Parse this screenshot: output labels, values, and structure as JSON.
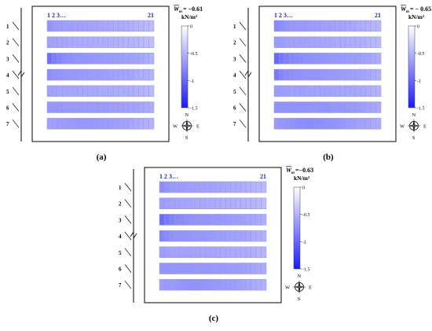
{
  "panels": [
    {
      "letter": "(a)",
      "mean_label": "= −0.61",
      "unit_label": "kN/m²",
      "col_label_first": "1 2 3…",
      "col_label_last": "21",
      "row_labels": [
        "1",
        "2",
        "3",
        "4",
        "5",
        "6",
        "7"
      ],
      "rows": [
        [
          -0.7,
          -0.66,
          -0.64,
          -0.62,
          -0.62,
          -0.61,
          -0.62,
          -0.6,
          -0.6,
          -0.59,
          -0.58,
          -0.57,
          -0.56,
          -0.55,
          -0.55,
          -0.54,
          -0.52,
          -0.5,
          -0.48,
          -0.46,
          -0.44
        ],
        [
          -0.62,
          -0.6,
          -0.58,
          -0.58,
          -0.57,
          -0.56,
          -0.56,
          -0.55,
          -0.55,
          -0.54,
          -0.54,
          -0.53,
          -0.52,
          -0.52,
          -0.51,
          -0.5,
          -0.49,
          -0.48,
          -0.46,
          -0.44,
          -0.42
        ],
        [
          -0.95,
          -0.85,
          -0.8,
          -0.76,
          -0.74,
          -0.72,
          -0.71,
          -0.7,
          -0.7,
          -0.69,
          -0.68,
          -0.67,
          -0.66,
          -0.65,
          -0.64,
          -0.63,
          -0.62,
          -0.6,
          -0.58,
          -0.55,
          -0.52
        ],
        [
          -0.75,
          -0.72,
          -0.7,
          -0.69,
          -0.68,
          -0.68,
          -0.67,
          -0.66,
          -0.66,
          -0.65,
          -0.64,
          -0.63,
          -0.62,
          -0.61,
          -0.6,
          -0.59,
          -0.58,
          -0.56,
          -0.54,
          -0.52,
          -0.5
        ],
        [
          -0.62,
          -0.6,
          -0.59,
          -0.58,
          -0.58,
          -0.58,
          -0.58,
          -0.57,
          -0.57,
          -0.57,
          -0.56,
          -0.56,
          -0.55,
          -0.55,
          -0.54,
          -0.54,
          -0.53,
          -0.52,
          -0.5,
          -0.48,
          -0.46
        ],
        [
          -0.68,
          -0.68,
          -0.68,
          -0.67,
          -0.67,
          -0.67,
          -0.67,
          -0.66,
          -0.66,
          -0.66,
          -0.65,
          -0.65,
          -0.64,
          -0.64,
          -0.63,
          -0.62,
          -0.61,
          -0.6,
          -0.58,
          -0.56,
          -0.54
        ],
        [
          -0.62,
          -0.63,
          -0.64,
          -0.65,
          -0.66,
          -0.67,
          -0.68,
          -0.68,
          -0.68,
          -0.67,
          -0.66,
          -0.65,
          -0.64,
          -0.63,
          -0.62,
          -0.6,
          -0.58,
          -0.56,
          -0.54,
          -0.52,
          -0.5
        ]
      ]
    },
    {
      "letter": "(b)",
      "mean_label": "= − 0.65",
      "unit_label": "kN/m²",
      "col_label_first": "1 2 3…",
      "col_label_last": "21",
      "row_labels": [
        "1",
        "2",
        "3",
        "4",
        "5",
        "6",
        "7"
      ],
      "rows": [
        [
          -0.78,
          -0.74,
          -0.7,
          -0.68,
          -0.67,
          -0.66,
          -0.66,
          -0.65,
          -0.64,
          -0.63,
          -0.62,
          -0.61,
          -0.6,
          -0.59,
          -0.58,
          -0.57,
          -0.55,
          -0.53,
          -0.51,
          -0.49,
          -0.47
        ],
        [
          -0.66,
          -0.64,
          -0.62,
          -0.62,
          -0.61,
          -0.6,
          -0.6,
          -0.59,
          -0.59,
          -0.58,
          -0.58,
          -0.57,
          -0.56,
          -0.56,
          -0.55,
          -0.54,
          -0.53,
          -0.52,
          -0.5,
          -0.48,
          -0.46
        ],
        [
          -0.98,
          -0.9,
          -0.84,
          -0.8,
          -0.78,
          -0.76,
          -0.74,
          -0.73,
          -0.72,
          -0.71,
          -0.7,
          -0.69,
          -0.68,
          -0.67,
          -0.66,
          -0.65,
          -0.64,
          -0.62,
          -0.6,
          -0.57,
          -0.54
        ],
        [
          -0.88,
          -0.8,
          -0.76,
          -0.74,
          -0.73,
          -0.72,
          -0.71,
          -0.7,
          -0.7,
          -0.69,
          -0.68,
          -0.67,
          -0.66,
          -0.65,
          -0.64,
          -0.63,
          -0.62,
          -0.6,
          -0.58,
          -0.55,
          -0.52
        ],
        [
          -0.66,
          -0.64,
          -0.63,
          -0.62,
          -0.62,
          -0.62,
          -0.61,
          -0.61,
          -0.61,
          -0.6,
          -0.6,
          -0.6,
          -0.59,
          -0.59,
          -0.58,
          -0.58,
          -0.57,
          -0.56,
          -0.54,
          -0.52,
          -0.5
        ],
        [
          -0.72,
          -0.72,
          -0.72,
          -0.72,
          -0.72,
          -0.71,
          -0.71,
          -0.71,
          -0.7,
          -0.7,
          -0.7,
          -0.69,
          -0.69,
          -0.68,
          -0.67,
          -0.66,
          -0.65,
          -0.63,
          -0.61,
          -0.59,
          -0.57
        ],
        [
          -0.66,
          -0.68,
          -0.7,
          -0.72,
          -0.74,
          -0.75,
          -0.76,
          -0.76,
          -0.75,
          -0.74,
          -0.73,
          -0.72,
          -0.7,
          -0.68,
          -0.66,
          -0.64,
          -0.62,
          -0.6,
          -0.58,
          -0.56,
          -0.54
        ]
      ]
    },
    {
      "letter": "(c)",
      "mean_label": "=−0.63",
      "unit_label": "kN/m²",
      "col_label_first": "1 2 3…",
      "col_label_last": "21",
      "row_labels": [
        "1",
        "2",
        "3",
        "4",
        "5",
        "6",
        "7"
      ],
      "rows": [
        [
          -0.74,
          -0.7,
          -0.67,
          -0.65,
          -0.64,
          -0.63,
          -0.63,
          -0.62,
          -0.62,
          -0.61,
          -0.6,
          -0.59,
          -0.58,
          -0.57,
          -0.56,
          -0.55,
          -0.53,
          -0.51,
          -0.49,
          -0.47,
          -0.45
        ],
        [
          -0.64,
          -0.62,
          -0.6,
          -0.6,
          -0.59,
          -0.58,
          -0.58,
          -0.57,
          -0.57,
          -0.56,
          -0.56,
          -0.55,
          -0.54,
          -0.54,
          -0.53,
          -0.52,
          -0.51,
          -0.5,
          -0.48,
          -0.46,
          -0.44
        ],
        [
          -0.97,
          -0.88,
          -0.82,
          -0.78,
          -0.76,
          -0.74,
          -0.72,
          -0.71,
          -0.71,
          -0.7,
          -0.69,
          -0.68,
          -0.67,
          -0.66,
          -0.65,
          -0.64,
          -0.63,
          -0.61,
          -0.59,
          -0.56,
          -0.53
        ],
        [
          -0.82,
          -0.76,
          -0.73,
          -0.71,
          -0.7,
          -0.7,
          -0.69,
          -0.68,
          -0.68,
          -0.67,
          -0.66,
          -0.65,
          -0.64,
          -0.63,
          -0.62,
          -0.61,
          -0.6,
          -0.58,
          -0.56,
          -0.53,
          -0.51
        ],
        [
          -0.64,
          -0.62,
          -0.61,
          -0.6,
          -0.6,
          -0.6,
          -0.6,
          -0.59,
          -0.59,
          -0.59,
          -0.58,
          -0.58,
          -0.57,
          -0.57,
          -0.56,
          -0.56,
          -0.55,
          -0.54,
          -0.52,
          -0.5,
          -0.48
        ],
        [
          -0.7,
          -0.7,
          -0.7,
          -0.69,
          -0.69,
          -0.69,
          -0.69,
          -0.68,
          -0.68,
          -0.68,
          -0.67,
          -0.67,
          -0.66,
          -0.66,
          -0.65,
          -0.64,
          -0.63,
          -0.61,
          -0.59,
          -0.57,
          -0.55
        ],
        [
          -0.64,
          -0.66,
          -0.67,
          -0.68,
          -0.7,
          -0.71,
          -0.72,
          -0.72,
          -0.71,
          -0.7,
          -0.69,
          -0.68,
          -0.67,
          -0.65,
          -0.64,
          -0.62,
          -0.6,
          -0.58,
          -0.56,
          -0.54,
          -0.52
        ]
      ]
    }
  ],
  "colorbar": {
    "min": -1.5,
    "max": 0,
    "ticks": [
      {
        "value": 0,
        "label": "0"
      },
      {
        "value": -0.5,
        "label": "-0.5"
      },
      {
        "value": -1,
        "label": "-1"
      },
      {
        "value": -1.5,
        "label": "-1.5"
      }
    ],
    "color_low": "#1a1aff",
    "color_high": "#ffffff"
  },
  "compass": {
    "north": "N",
    "south": "S",
    "east": "E",
    "west": "W"
  },
  "colors": {
    "cell_border": "#9a9ad0",
    "frame": "#000000",
    "header_text": "#1f1fb4"
  }
}
